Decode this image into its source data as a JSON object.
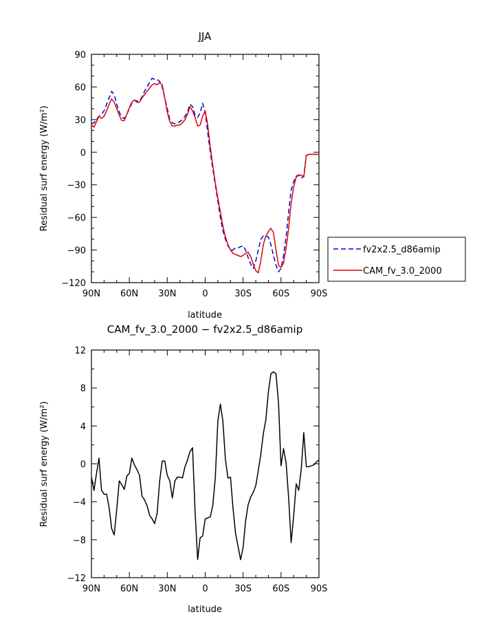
{
  "chart_data": [
    {
      "type": "line",
      "title": "JJA",
      "xlabel": "latitude",
      "ylabel": "Residual surf energy (W/m²)",
      "xlim": [
        90,
        -90
      ],
      "ylim": [
        -120,
        90
      ],
      "xticks": [
        90,
        60,
        30,
        0,
        -30,
        -60,
        -90
      ],
      "xticklabels": [
        "90N",
        "60N",
        "30N",
        "0",
        "30S",
        "60S",
        "90S"
      ],
      "yticks": [
        90,
        60,
        30,
        0,
        -30,
        -60,
        -90,
        -120
      ],
      "yticklabels": [
        "90",
        "60",
        "30",
        "0",
        "−30",
        "−60",
        "−90",
        "−120"
      ],
      "legend_position": "right",
      "series": [
        {
          "name": "fv2x2.5_d86amip",
          "color": "#0000cc",
          "dash": "dashed",
          "x": [
            90,
            88,
            86,
            84,
            82,
            80,
            78,
            76,
            74,
            72,
            70,
            68,
            66,
            64,
            62,
            60,
            58,
            56,
            54,
            52,
            50,
            48,
            46,
            44,
            42,
            40,
            38,
            36,
            34,
            32,
            30,
            28,
            26,
            24,
            22,
            20,
            18,
            16,
            14,
            12,
            10,
            8,
            6,
            4,
            2,
            0,
            -2,
            -4,
            -6,
            -8,
            -10,
            -12,
            -14,
            -16,
            -18,
            -20,
            -22,
            -24,
            -26,
            -28,
            -30,
            -32,
            -34,
            -36,
            -38,
            -40,
            -42,
            -44,
            -46,
            -48,
            -50,
            -52,
            -54,
            -56,
            -58,
            -60,
            -62,
            -64,
            -66,
            -68,
            -70,
            -72,
            -74,
            -76,
            -78,
            -80,
            -82,
            -84,
            -86,
            -88,
            -90
          ],
          "y": [
            26,
            27,
            30,
            33,
            35,
            38,
            44,
            50,
            56,
            53,
            44,
            37,
            32,
            31,
            35,
            40,
            45,
            48,
            47,
            47,
            51,
            56,
            60,
            64,
            68,
            67,
            67,
            65,
            60,
            50,
            40,
            30,
            27,
            26,
            27,
            28,
            30,
            33,
            37,
            44,
            42,
            34,
            32,
            36,
            45,
            37,
            18,
            0,
            -15,
            -30,
            -45,
            -60,
            -72,
            -80,
            -86,
            -90,
            -90,
            -88,
            -88,
            -87,
            -86,
            -90,
            -97,
            -103,
            -107,
            -100,
            -90,
            -80,
            -77,
            -77,
            -78,
            -85,
            -95,
            -104,
            -110,
            -107,
            -95,
            -78,
            -55,
            -35,
            -27,
            -22,
            -21,
            -24,
            -22,
            -3,
            -2,
            -2,
            -2,
            -2,
            -2
          ]
        },
        {
          "name": "CAM_fv_3.0_2000",
          "color": "#dd0000",
          "dash": "solid",
          "x": [
            90,
            88,
            86,
            84,
            82,
            80,
            78,
            76,
            74,
            72,
            70,
            68,
            66,
            64,
            62,
            60,
            58,
            56,
            54,
            52,
            50,
            48,
            46,
            44,
            42,
            40,
            38,
            36,
            34,
            32,
            30,
            28,
            26,
            24,
            22,
            20,
            18,
            16,
            14,
            12,
            10,
            8,
            6,
            4,
            2,
            0,
            -2,
            -4,
            -6,
            -8,
            -10,
            -12,
            -14,
            -16,
            -18,
            -20,
            -22,
            -24,
            -26,
            -28,
            -30,
            -32,
            -34,
            -36,
            -38,
            -40,
            -42,
            -44,
            -46,
            -48,
            -50,
            -52,
            -54,
            -56,
            -58,
            -60,
            -62,
            -64,
            -66,
            -68,
            -70,
            -72,
            -74,
            -76,
            -78,
            -80,
            -82,
            -84,
            -86,
            -88,
            -90
          ],
          "y": [
            25,
            23,
            28,
            33,
            31,
            33,
            38,
            44,
            49,
            46,
            40,
            34,
            29,
            29,
            35,
            41,
            46,
            48,
            46,
            46,
            50,
            53,
            56,
            59,
            62,
            63,
            62,
            64,
            62,
            50,
            37,
            28,
            24,
            24,
            25,
            25,
            27,
            30,
            35,
            42,
            38,
            32,
            24,
            25,
            33,
            38,
            25,
            5,
            -12,
            -28,
            -42,
            -55,
            -68,
            -78,
            -85,
            -90,
            -93,
            -94,
            -95,
            -96,
            -95,
            -93,
            -92,
            -96,
            -103,
            -109,
            -111,
            -100,
            -85,
            -77,
            -73,
            -70,
            -74,
            -90,
            -104,
            -106,
            -102,
            -88,
            -70,
            -47,
            -32,
            -23,
            -21,
            -21,
            -23,
            -3,
            -2,
            -2,
            -2,
            -2,
            -2
          ]
        }
      ]
    },
    {
      "type": "line",
      "title": "CAM_fv_3.0_2000 − fv2x2.5_d86amip",
      "xlabel": "latitude",
      "ylabel": "Residual surf energy (W/m²)",
      "xlim": [
        90,
        -90
      ],
      "ylim": [
        -12,
        12
      ],
      "xticks": [
        90,
        60,
        30,
        0,
        -30,
        -60,
        -90
      ],
      "xticklabels": [
        "90N",
        "60N",
        "30N",
        "0",
        "30S",
        "60S",
        "90S"
      ],
      "yticks": [
        12,
        8,
        4,
        0,
        -4,
        -8,
        -12
      ],
      "yticklabels": [
        "12",
        "8",
        "4",
        "0",
        "−4",
        "−8",
        "−12"
      ],
      "series": [
        {
          "color": "#000000",
          "dash": "solid",
          "x": [
            90,
            88,
            86,
            84,
            82,
            80,
            78,
            76,
            74,
            72,
            70,
            68,
            66,
            64,
            62,
            60,
            58,
            56,
            54,
            52,
            50,
            48,
            46,
            44,
            42,
            40,
            38,
            36,
            34,
            32,
            30,
            28,
            26,
            24,
            22,
            20,
            18,
            16,
            14,
            12,
            10,
            8,
            6,
            4,
            2,
            0,
            -2,
            -4,
            -6,
            -8,
            -10,
            -12,
            -14,
            -16,
            -18,
            -20,
            -22,
            -24,
            -26,
            -28,
            -30,
            -32,
            -34,
            -36,
            -38,
            -40,
            -42,
            -44,
            -46,
            -48,
            -50,
            -52,
            -54,
            -56,
            -58,
            -60,
            -62,
            -64,
            -66,
            -68,
            -70,
            -72,
            -74,
            -76,
            -78,
            -80,
            -82,
            -84,
            -86,
            -88,
            -90
          ],
          "y": [
            -1.4,
            -2.8,
            -1.0,
            0.6,
            -2.8,
            -3.2,
            -3.2,
            -4.6,
            -6.8,
            -7.5,
            -4.8,
            -1.8,
            -2.2,
            -2.7,
            -1.3,
            -1.0,
            0.6,
            -0.1,
            -0.6,
            -1.2,
            -3.4,
            -3.8,
            -4.4,
            -5.4,
            -5.8,
            -6.3,
            -5.2,
            -1.8,
            0.3,
            0.3,
            -1.2,
            -1.8,
            -3.6,
            -1.8,
            -1.4,
            -1.4,
            -1.5,
            -0.3,
            0.4,
            1.3,
            1.7,
            -5.0,
            -10.1,
            -7.8,
            -7.6,
            -5.8,
            -5.7,
            -5.6,
            -4.4,
            -1.5,
            4.5,
            6.3,
            4.5,
            0.5,
            -1.5,
            -1.4,
            -4.7,
            -7.3,
            -8.7,
            -10.1,
            -8.8,
            -6.0,
            -4.3,
            -3.5,
            -3.0,
            -2.3,
            -0.7,
            1.0,
            3.2,
            4.7,
            7.6,
            9.5,
            9.7,
            9.5,
            6.4,
            -0.2,
            1.6,
            0.1,
            -3.6,
            -8.3,
            -5.5,
            -2.1,
            -2.8,
            -0.5,
            3.3,
            -0.3,
            -0.3,
            -0.2,
            -0.1,
            0.2,
            0.4
          ]
        }
      ]
    }
  ]
}
